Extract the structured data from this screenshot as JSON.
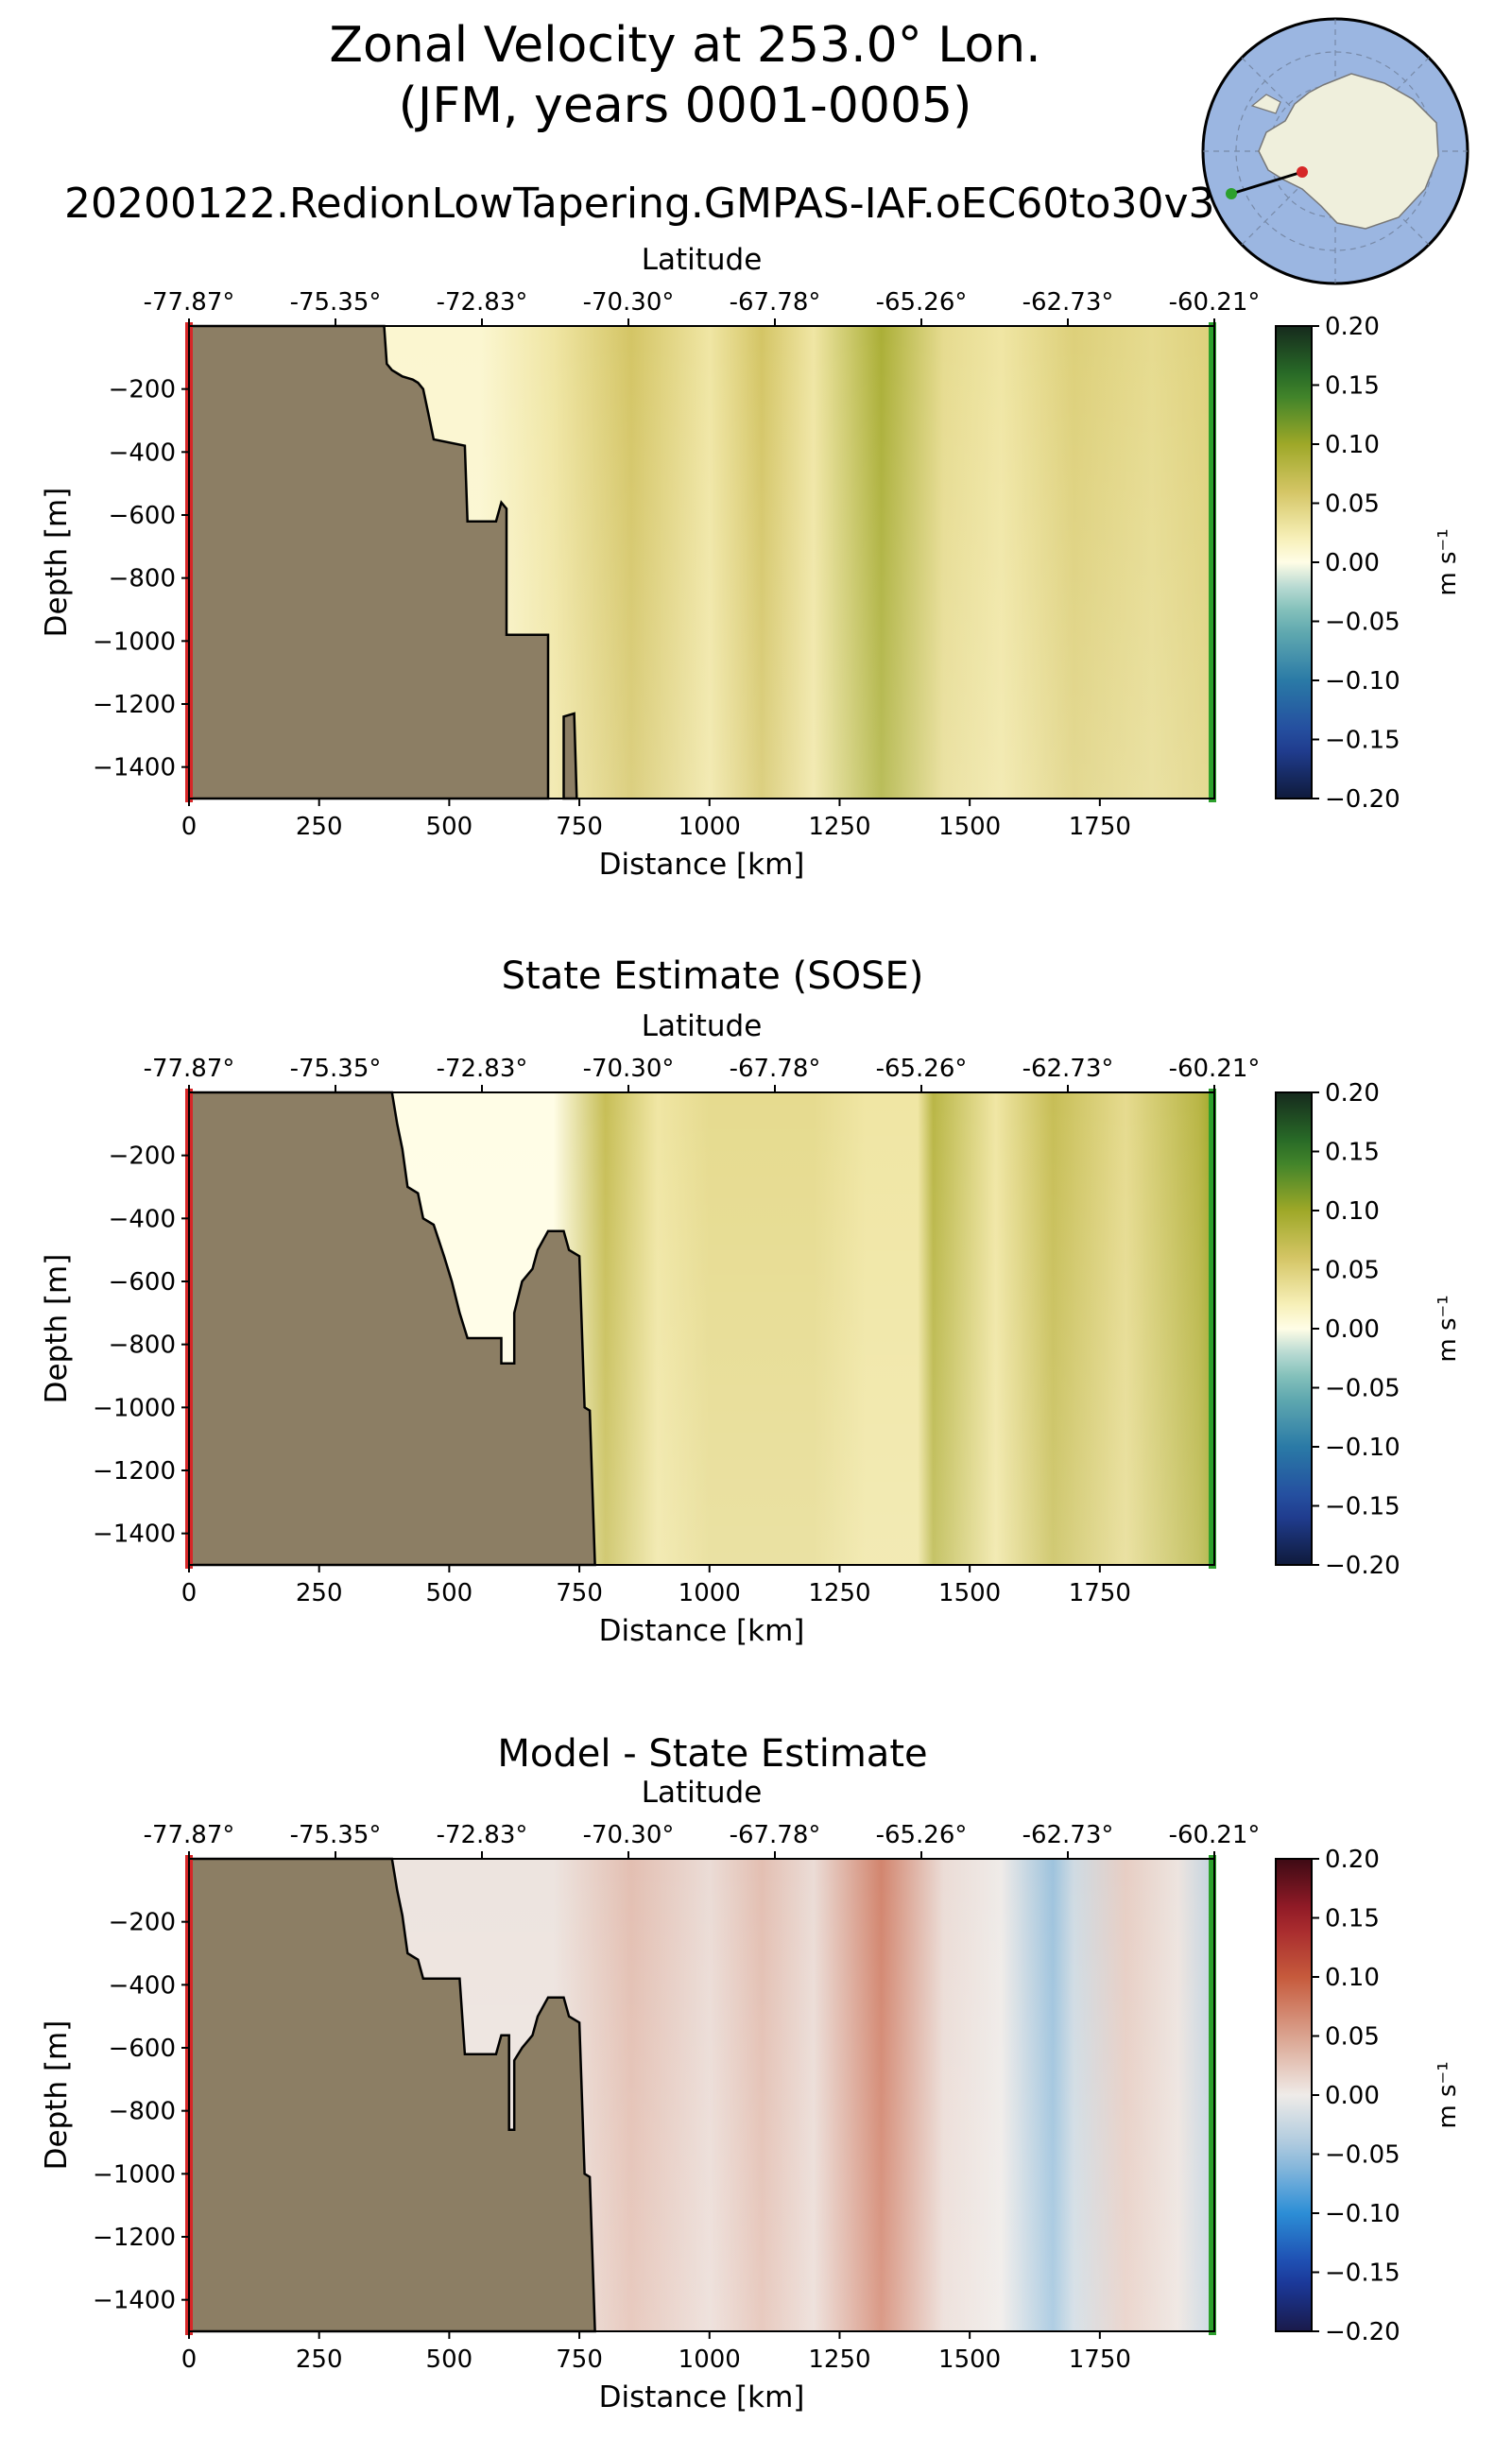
{
  "header": {
    "title_line1": "Zonal Velocity at 253.0° Lon.",
    "title_line2": "(JFM, years 0001-0005)",
    "run_name": "20200122.RedionLowTapering.GMPAS-IAF.oEC60to30v3"
  },
  "inset_map": {
    "description_icon": "antarctica-polar-map-icon",
    "ocean_color": "#9bb6e1",
    "land_color": "#efefdc",
    "start_color": "#d62728",
    "end_color": "#2ca02c"
  },
  "colors": {
    "land": "#8c7e64",
    "start_line": "#d62728",
    "end_line": "#2ca02c"
  },
  "chart_data": [
    {
      "type": "heatmap",
      "title": "",
      "xlabel": "Distance [km]",
      "ylabel": "Depth [m]",
      "x2label": "Latitude",
      "xlim": [
        0,
        1970
      ],
      "ylim": [
        -1500,
        0
      ],
      "xticks": [
        0,
        250,
        500,
        750,
        1000,
        1250,
        1500,
        1750
      ],
      "yticks": [
        -200,
        -400,
        -600,
        -800,
        -1000,
        -1200,
        -1400
      ],
      "lat_ticks": [
        "-77.87°",
        "-75.35°",
        "-72.83°",
        "-70.30°",
        "-67.78°",
        "-65.26°",
        "-62.73°",
        "-60.21°"
      ],
      "colorbar": {
        "label": "m s⁻¹",
        "cmap": "delta",
        "range": [
          -0.2,
          0.2
        ],
        "ticks": [
          "0.20",
          "0.15",
          "0.10",
          "0.05",
          "0.00",
          "−0.05",
          "−0.10",
          "−0.15",
          "−0.20"
        ]
      },
      "bottom": [
        [
          0,
          0
        ],
        [
          375,
          0
        ],
        [
          380,
          -120
        ],
        [
          390,
          -140
        ],
        [
          400,
          -150
        ],
        [
          410,
          -160
        ],
        [
          430,
          -170
        ],
        [
          440,
          -180
        ],
        [
          450,
          -200
        ],
        [
          460,
          -280
        ],
        [
          470,
          -360
        ],
        [
          530,
          -380
        ],
        [
          535,
          -620
        ],
        [
          590,
          -620
        ],
        [
          600,
          -560
        ],
        [
          610,
          -580
        ],
        [
          610,
          -980
        ],
        [
          690,
          -980
        ],
        [
          690,
          -1500
        ]
      ],
      "extra_bottom": [
        [
          720,
          -1500
        ],
        [
          720,
          -1240
        ],
        [
          740,
          -1230
        ],
        [
          745,
          -1500
        ]
      ],
      "zonal_velocity": [
        {
          "x": 560,
          "v": 0.01
        },
        {
          "x": 700,
          "v": 0.03
        },
        {
          "x": 850,
          "v": 0.06
        },
        {
          "x": 1000,
          "v": 0.03
        },
        {
          "x": 1100,
          "v": 0.06
        },
        {
          "x": 1200,
          "v": 0.03
        },
        {
          "x": 1330,
          "v": 0.09
        },
        {
          "x": 1450,
          "v": 0.04
        },
        {
          "x": 1560,
          "v": 0.03
        },
        {
          "x": 1700,
          "v": 0.05
        },
        {
          "x": 1850,
          "v": 0.04
        },
        {
          "x": 1970,
          "v": 0.05
        }
      ]
    },
    {
      "type": "heatmap",
      "title": "State Estimate (SOSE)",
      "xlabel": "Distance [km]",
      "ylabel": "Depth [m]",
      "x2label": "Latitude",
      "xlim": [
        0,
        1970
      ],
      "ylim": [
        -1500,
        0
      ],
      "xticks": [
        0,
        250,
        500,
        750,
        1000,
        1250,
        1500,
        1750
      ],
      "yticks": [
        -200,
        -400,
        -600,
        -800,
        -1000,
        -1200,
        -1400
      ],
      "lat_ticks": [
        "-77.87°",
        "-75.35°",
        "-72.83°",
        "-70.30°",
        "-67.78°",
        "-65.26°",
        "-62.73°",
        "-60.21°"
      ],
      "colorbar": {
        "label": "m s⁻¹",
        "cmap": "delta",
        "range": [
          -0.2,
          0.2
        ],
        "ticks": [
          "0.20",
          "0.15",
          "0.10",
          "0.05",
          "0.00",
          "−0.05",
          "−0.10",
          "−0.15",
          "−0.20"
        ]
      },
      "bottom": [
        [
          0,
          0
        ],
        [
          390,
          0
        ],
        [
          400,
          -100
        ],
        [
          410,
          -180
        ],
        [
          420,
          -300
        ],
        [
          440,
          -320
        ],
        [
          450,
          -400
        ],
        [
          470,
          -420
        ],
        [
          490,
          -520
        ],
        [
          505,
          -600
        ],
        [
          520,
          -700
        ],
        [
          535,
          -780
        ],
        [
          600,
          -780
        ],
        [
          600,
          -860
        ],
        [
          625,
          -860
        ],
        [
          625,
          -700
        ],
        [
          640,
          -600
        ],
        [
          660,
          -560
        ],
        [
          670,
          -500
        ],
        [
          690,
          -440
        ],
        [
          720,
          -440
        ],
        [
          730,
          -500
        ],
        [
          750,
          -520
        ],
        [
          760,
          -1000
        ],
        [
          770,
          -1010
        ],
        [
          780,
          -1500
        ]
      ],
      "extra_bottom": [],
      "zonal_velocity": [
        {
          "x": 700,
          "v": 0.0
        },
        {
          "x": 800,
          "v": 0.07
        },
        {
          "x": 900,
          "v": 0.03
        },
        {
          "x": 1000,
          "v": 0.04
        },
        {
          "x": 1100,
          "v": 0.04
        },
        {
          "x": 1200,
          "v": 0.04
        },
        {
          "x": 1300,
          "v": 0.03
        },
        {
          "x": 1400,
          "v": 0.03
        },
        {
          "x": 1430,
          "v": 0.08
        },
        {
          "x": 1550,
          "v": 0.03
        },
        {
          "x": 1660,
          "v": 0.07
        },
        {
          "x": 1800,
          "v": 0.04
        },
        {
          "x": 1940,
          "v": 0.08
        },
        {
          "x": 1970,
          "v": 0.1
        }
      ]
    },
    {
      "type": "heatmap",
      "title": "Model - State Estimate",
      "xlabel": "Distance [km]",
      "ylabel": "Depth [m]",
      "x2label": "Latitude",
      "xlim": [
        0,
        1970
      ],
      "ylim": [
        -1500,
        0
      ],
      "xticks": [
        0,
        250,
        500,
        750,
        1000,
        1250,
        1500,
        1750
      ],
      "yticks": [
        -200,
        -400,
        -600,
        -800,
        -1000,
        -1200,
        -1400
      ],
      "lat_ticks": [
        "-77.87°",
        "-75.35°",
        "-72.83°",
        "-70.30°",
        "-67.78°",
        "-65.26°",
        "-62.73°",
        "-60.21°"
      ],
      "colorbar": {
        "label": "m s⁻¹",
        "cmap": "balance",
        "range": [
          -0.2,
          0.2
        ],
        "ticks": [
          "0.20",
          "0.15",
          "0.10",
          "0.05",
          "0.00",
          "−0.05",
          "−0.10",
          "−0.15",
          "−0.20"
        ]
      },
      "bottom": [
        [
          0,
          0
        ],
        [
          390,
          0
        ],
        [
          400,
          -100
        ],
        [
          410,
          -180
        ],
        [
          420,
          -300
        ],
        [
          440,
          -320
        ],
        [
          450,
          -380
        ],
        [
          520,
          -380
        ],
        [
          530,
          -620
        ],
        [
          590,
          -620
        ],
        [
          600,
          -560
        ],
        [
          615,
          -560
        ],
        [
          615,
          -860
        ],
        [
          625,
          -860
        ],
        [
          625,
          -640
        ],
        [
          640,
          -600
        ],
        [
          660,
          -560
        ],
        [
          670,
          -500
        ],
        [
          690,
          -440
        ],
        [
          720,
          -440
        ],
        [
          730,
          -500
        ],
        [
          750,
          -520
        ],
        [
          760,
          -1000
        ],
        [
          770,
          -1010
        ],
        [
          780,
          -1500
        ]
      ],
      "extra_bottom": [],
      "zonal_velocity": [
        {
          "x": 700,
          "v": 0.005
        },
        {
          "x": 850,
          "v": 0.03
        },
        {
          "x": 1000,
          "v": 0.01
        },
        {
          "x": 1100,
          "v": 0.03
        },
        {
          "x": 1200,
          "v": 0.01
        },
        {
          "x": 1330,
          "v": 0.07
        },
        {
          "x": 1450,
          "v": 0.01
        },
        {
          "x": 1560,
          "v": 0.0
        },
        {
          "x": 1660,
          "v": -0.05
        },
        {
          "x": 1700,
          "v": -0.02
        },
        {
          "x": 1800,
          "v": 0.02
        },
        {
          "x": 1900,
          "v": 0.005
        },
        {
          "x": 1970,
          "v": -0.03
        }
      ]
    }
  ]
}
